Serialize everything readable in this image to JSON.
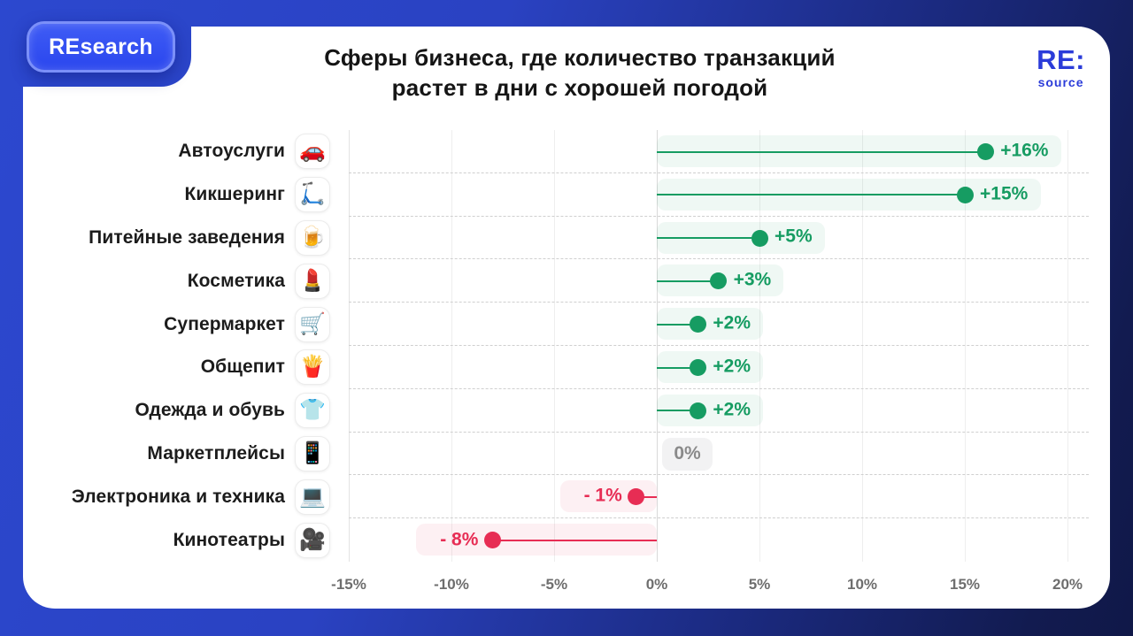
{
  "badge": {
    "label": "REsearch"
  },
  "logo": {
    "line1": "RE:",
    "line2": "source"
  },
  "title": {
    "line1": "Сферы бизнеса, где количество транзакций",
    "line2": "растет в дни с хорошей погодой"
  },
  "colors": {
    "positive": "#169c62",
    "negative": "#e72d54",
    "zero_text": "#8a8a8a",
    "accent_blue": "#2b3cd9",
    "badge_blue": "#2a46ee",
    "background_left": "#2c48cf",
    "background_right": "#101848"
  },
  "chart_data": {
    "type": "bar",
    "orientation": "horizontal-lollipop",
    "title": "Сферы бизнеса, где количество транзакций растет в дни с хорошей погодой",
    "xlabel": "",
    "ylabel": "",
    "unit": "%",
    "xlim": [
      -15,
      20
    ],
    "grid": true,
    "xticks": [
      {
        "value": -15,
        "label": "-15%"
      },
      {
        "value": -10,
        "label": "-10%"
      },
      {
        "value": -5,
        "label": "-5%"
      },
      {
        "value": 0,
        "label": "0%"
      },
      {
        "value": 5,
        "label": "5%"
      },
      {
        "value": 10,
        "label": "10%"
      },
      {
        "value": 15,
        "label": "15%"
      },
      {
        "value": 20,
        "label": "20%"
      }
    ],
    "categories": [
      {
        "label": "Автоуслуги",
        "icon": "car-icon",
        "emoji": "🚗",
        "value": 16,
        "display": "+16%"
      },
      {
        "label": "Кикшеринг",
        "icon": "kick-scooter-icon",
        "emoji": "🛴",
        "value": 15,
        "display": "+15%"
      },
      {
        "label": "Питейные заведения",
        "icon": "beer-mug-icon",
        "emoji": "🍺",
        "value": 5,
        "display": "+5%"
      },
      {
        "label": "Косметика",
        "icon": "lipstick-icon",
        "emoji": "💄",
        "value": 3,
        "display": "+3%"
      },
      {
        "label": "Супермаркет",
        "icon": "shopping-cart-icon",
        "emoji": "🛒",
        "value": 2,
        "display": "+2%"
      },
      {
        "label": "Общепит",
        "icon": "fries-icon",
        "emoji": "🍟",
        "value": 2,
        "display": "+2%"
      },
      {
        "label": "Одежда и обувь",
        "icon": "tshirt-icon",
        "emoji": "👕",
        "value": 2,
        "display": "+2%"
      },
      {
        "label": "Маркетплейсы",
        "icon": "smartphone-icon",
        "emoji": "📱",
        "value": 0,
        "display": "0%"
      },
      {
        "label": "Электроника и техника",
        "icon": "laptop-icon",
        "emoji": "💻",
        "value": -1,
        "display": "- 1%"
      },
      {
        "label": "Кинотеатры",
        "icon": "movie-camera-icon",
        "emoji": "🎥",
        "value": -8,
        "display": "- 8%"
      }
    ]
  }
}
